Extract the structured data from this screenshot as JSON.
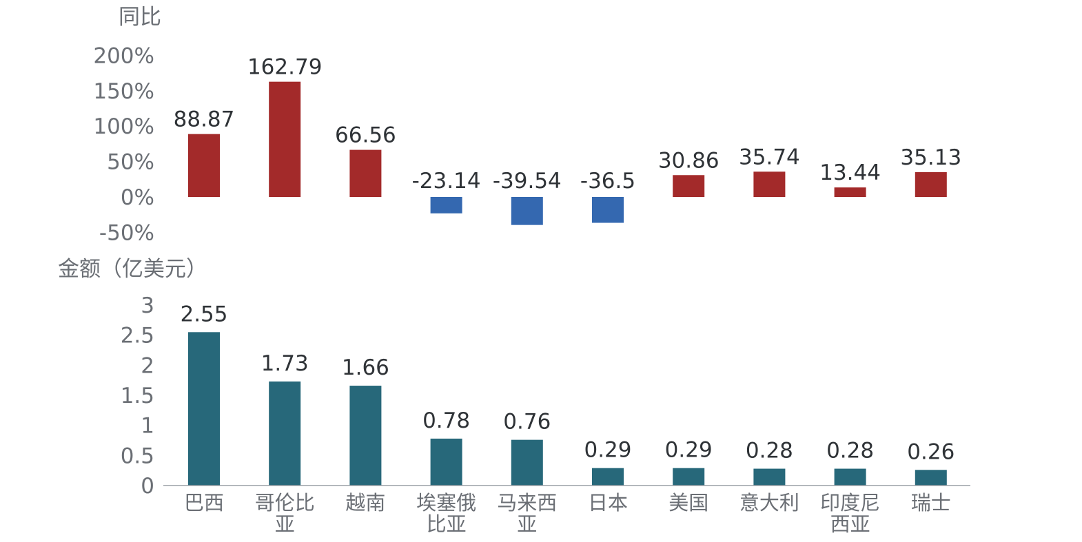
{
  "chart_data": [
    {
      "type": "bar",
      "ylabel": "同比",
      "categories": [
        "巴西",
        "哥伦比亚",
        "越南",
        "埃塞俄比亚",
        "马来西亚",
        "日本",
        "美国",
        "意大利",
        "印度尼西亚",
        "瑞士"
      ],
      "values": [
        88.87,
        162.79,
        66.56,
        -23.14,
        -39.54,
        -36.5,
        30.86,
        35.74,
        13.44,
        35.13
      ],
      "data_labels": [
        "88.87",
        "162.79",
        "66.56",
        "-23.14",
        "-39.54",
        "-36.5",
        "30.86",
        "35.74",
        "13.44",
        "35.13"
      ],
      "ylim": [
        -50,
        200
      ],
      "yticks": [
        200,
        150,
        100,
        50,
        0,
        -50
      ],
      "ytick_labels": [
        "200%",
        "150%",
        "100%",
        "50%",
        "0%",
        "-50%"
      ],
      "colors": {
        "positive": "#a32a2a",
        "negative": "#3468b0"
      },
      "grid": false
    },
    {
      "type": "bar",
      "ylabel": "金额（亿美元）",
      "categories": [
        "巴西",
        "哥伦比亚",
        "越南",
        "埃塞俄比亚",
        "马来西亚",
        "日本",
        "美国",
        "意大利",
        "印度尼西亚",
        "瑞士"
      ],
      "category_lines": [
        [
          "巴西"
        ],
        [
          "哥伦比",
          "亚"
        ],
        [
          "越南"
        ],
        [
          "埃塞俄",
          "比亚"
        ],
        [
          "马来西",
          "亚"
        ],
        [
          "日本"
        ],
        [
          "美国"
        ],
        [
          "意大利"
        ],
        [
          "印度尼",
          "西亚"
        ],
        [
          "瑞士"
        ]
      ],
      "values": [
        2.55,
        1.73,
        1.66,
        0.78,
        0.76,
        0.29,
        0.29,
        0.28,
        0.28,
        0.26
      ],
      "data_labels": [
        "2.55",
        "1.73",
        "1.66",
        "0.78",
        "0.76",
        "0.29",
        "0.29",
        "0.28",
        "0.28",
        "0.26"
      ],
      "ylim": [
        0,
        3
      ],
      "yticks": [
        3,
        2.5,
        2,
        1.5,
        1,
        0.5,
        0
      ],
      "ytick_labels": [
        "3",
        "2.5",
        "2",
        "1.5",
        "1",
        "0.5",
        "0"
      ],
      "colors": {
        "bar": "#27687a",
        "axis": "#9aa0a6"
      },
      "grid": false
    }
  ]
}
